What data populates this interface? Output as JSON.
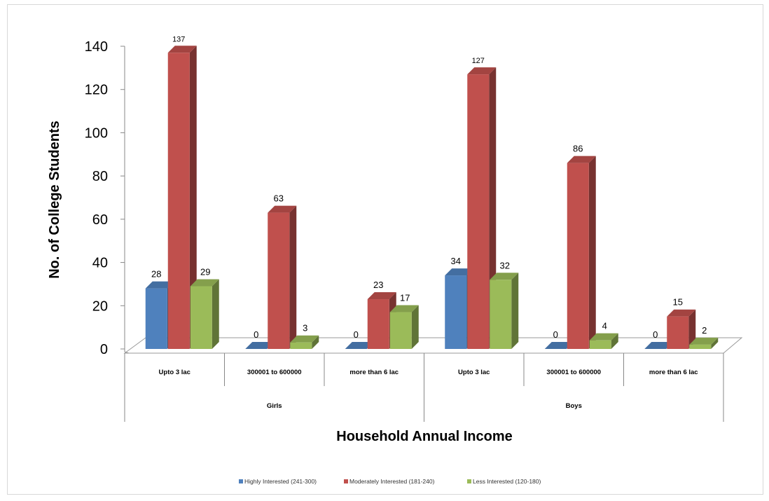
{
  "chart_data": {
    "type": "bar",
    "title": "",
    "xlabel": "Household Annual Income",
    "ylabel": "No. of College Students",
    "ylim": [
      0,
      140
    ],
    "yticks": [
      0,
      20,
      40,
      60,
      80,
      100,
      120,
      140
    ],
    "groups": [
      "Girls",
      "Boys"
    ],
    "categories": [
      "Upto 3 lac",
      "300001 to 600000",
      "more than 6 lac",
      "Upto 3 lac",
      "300001 to 600000",
      "more than 6 lac"
    ],
    "category_group": [
      0,
      0,
      0,
      1,
      1,
      1
    ],
    "series": [
      {
        "name": "Highly Interested (241-300)",
        "color": "#4F81BD",
        "values": [
          28,
          0,
          0,
          34,
          0,
          0
        ]
      },
      {
        "name": "Moderately Interested (181-240)",
        "color": "#C0504D",
        "values": [
          137,
          63,
          23,
          127,
          86,
          15
        ]
      },
      {
        "name": "Less Interested (120-180)",
        "color": "#9BBB59",
        "values": [
          29,
          3,
          17,
          32,
          4,
          2
        ]
      }
    ],
    "legend_position": "bottom",
    "grid": false,
    "data_labels": true
  }
}
